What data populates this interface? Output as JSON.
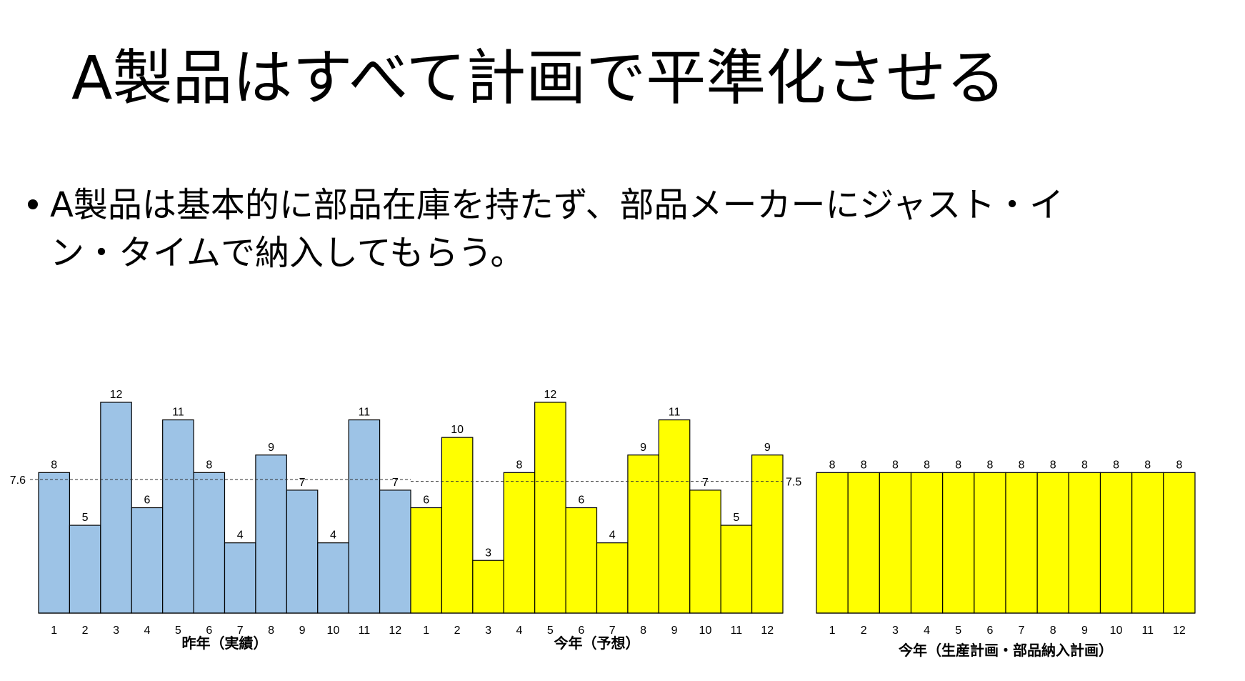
{
  "slide": {
    "title": "A製品はすべて計画で平準化させる",
    "bullet_lines": [
      "A製品は基本的に部品在庫を持たず、部品メーカーにジャスト・イ",
      "ン・タイムで納入してもらう。"
    ]
  },
  "chart_data": [
    {
      "type": "bar",
      "title": "昨年（実績）",
      "categories": [
        "1",
        "2",
        "3",
        "4",
        "5",
        "6",
        "7",
        "8",
        "9",
        "10",
        "11",
        "12"
      ],
      "values": [
        8,
        5,
        12,
        6,
        11,
        8,
        4,
        9,
        7,
        4,
        11,
        7
      ],
      "color": "#9dc3e6",
      "ylim": [
        0,
        12
      ],
      "average": 7.6
    },
    {
      "type": "bar",
      "title": "今年（予想）",
      "categories": [
        "1",
        "2",
        "3",
        "4",
        "5",
        "6",
        "7",
        "8",
        "9",
        "10",
        "11",
        "12"
      ],
      "values": [
        6,
        10,
        3,
        8,
        12,
        6,
        4,
        9,
        11,
        7,
        5,
        9
      ],
      "color": "#ffff00",
      "ylim": [
        0,
        12
      ],
      "average": 7.5
    },
    {
      "type": "bar",
      "title": "今年（生産計画・部品納入計画）",
      "categories": [
        "1",
        "2",
        "3",
        "4",
        "5",
        "6",
        "7",
        "8",
        "9",
        "10",
        "11",
        "12"
      ],
      "values": [
        8,
        8,
        8,
        8,
        8,
        8,
        8,
        8,
        8,
        8,
        8,
        8
      ],
      "color": "#ffff00",
      "ylim": [
        0,
        12
      ]
    }
  ]
}
